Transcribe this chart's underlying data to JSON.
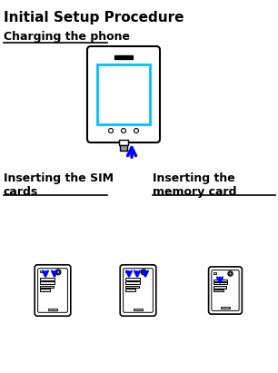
{
  "title": "Initial Setup Procedure",
  "section1_title": "Charging the phone",
  "section2_title": "Inserting the SIM\ncards",
  "section3_title": "Inserting the\nmemory card",
  "bg_color": "#ffffff",
  "text_color": "#000000",
  "arrow_color": "#0000ff",
  "phone_outline_color": "#000000",
  "screen_color": "#00bfff",
  "title_fontsize": 11,
  "section_fontsize": 9
}
